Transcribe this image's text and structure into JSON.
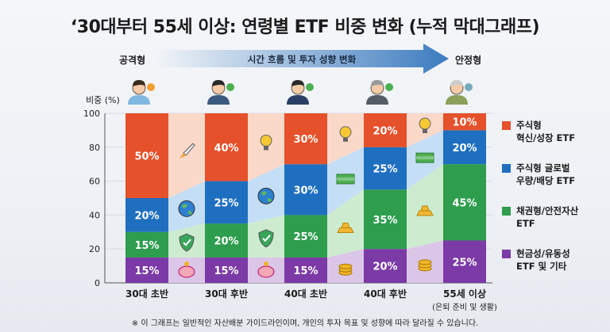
{
  "title": "‘30대부터 55세 이상: 연령별 ETF 비중 변화 (누적 막대그래프)",
  "flow": {
    "left_label": "공격형",
    "center_label": "시간 흐름 및 투자 성향 변화",
    "right_label": "안정형",
    "arrow_color": "#3d7cc0"
  },
  "note": "※ 이 그래프는 일반적인 자산배분 가이드라인이며, 개인의 투자 목표 및 성향에 따라 달라질 수 있습니다.",
  "avatars": [
    "young-man-with-gears-icon",
    "man-with-check-icon",
    "man-in-suit-with-growth-icon",
    "senior-man-with-dollar-icon",
    "elderly-man-with-house-icon"
  ],
  "gap_icons": [
    [
      "rocket-icon",
      "globe-icon",
      "shield-icon",
      "piggy-bank-icon"
    ],
    [
      "lightbulb-icon",
      "globe-icon",
      "shield-icon",
      "piggy-bank-icon"
    ],
    [
      "lightbulb-icon",
      "money-stack-icon",
      "gold-bars-icon",
      "coins-icon"
    ],
    [
      "lightbulb-icon",
      "money-stack-icon",
      "gold-bars-icon",
      "coins-icon"
    ]
  ],
  "chart_data": {
    "type": "bar",
    "stacked": true,
    "ylabel": "비중 (%)",
    "ylim": [
      0,
      100
    ],
    "yticks": [
      0,
      20,
      40,
      60,
      80,
      100
    ],
    "grid": true,
    "legend_position": "right",
    "categories": [
      "30대 초반",
      "30대 후반",
      "40대 초반",
      "40대 후반",
      "55세 이상"
    ],
    "category_sublabels": [
      "",
      "",
      "",
      "",
      "(은퇴 준비 및 생활)"
    ],
    "series": [
      {
        "name": "현금성/유동성 ETF 및 기타",
        "color": "#7b3aa6",
        "flow_color": "#dcc6e8",
        "values": [
          15,
          15,
          15,
          20,
          25
        ],
        "labels": [
          "15%",
          "15%",
          "15%",
          "20%",
          "25%"
        ]
      },
      {
        "name": "채권형/안전자산 ETF",
        "color": "#2e9d4e",
        "flow_color": "#cdeccf",
        "values": [
          15,
          20,
          25,
          35,
          45
        ],
        "labels": [
          "15%",
          "20%",
          "25%",
          "35%",
          "45%"
        ]
      },
      {
        "name": "주식형 글로벌 우량/배당 ETF",
        "color": "#1f6fc0",
        "flow_color": "#c4def5",
        "values": [
          20,
          25,
          30,
          25,
          20
        ],
        "labels": [
          "20%",
          "25%",
          "30%",
          "25%",
          "20%"
        ]
      },
      {
        "name": "주식형 혁신/성장 ETF",
        "color": "#e5512b",
        "flow_color": "#fbd9c9",
        "values": [
          50,
          40,
          30,
          20,
          10
        ],
        "labels": [
          "50%",
          "40%",
          "30%",
          "20%",
          "10%"
        ]
      }
    ],
    "legend": [
      {
        "line1": "주식형",
        "line2": "혁신/성장 ETF",
        "color": "#e5512b"
      },
      {
        "line1": "주식형 글로벌",
        "line2": "우량/배당 ETF",
        "color": "#1f6fc0"
      },
      {
        "line1": "채권형/안전자산",
        "line2": "ETF",
        "color": "#2e9d4e"
      },
      {
        "line1": "현금성/유동성",
        "line2": "ETF 및 기타",
        "color": "#7b3aa6"
      }
    ]
  }
}
